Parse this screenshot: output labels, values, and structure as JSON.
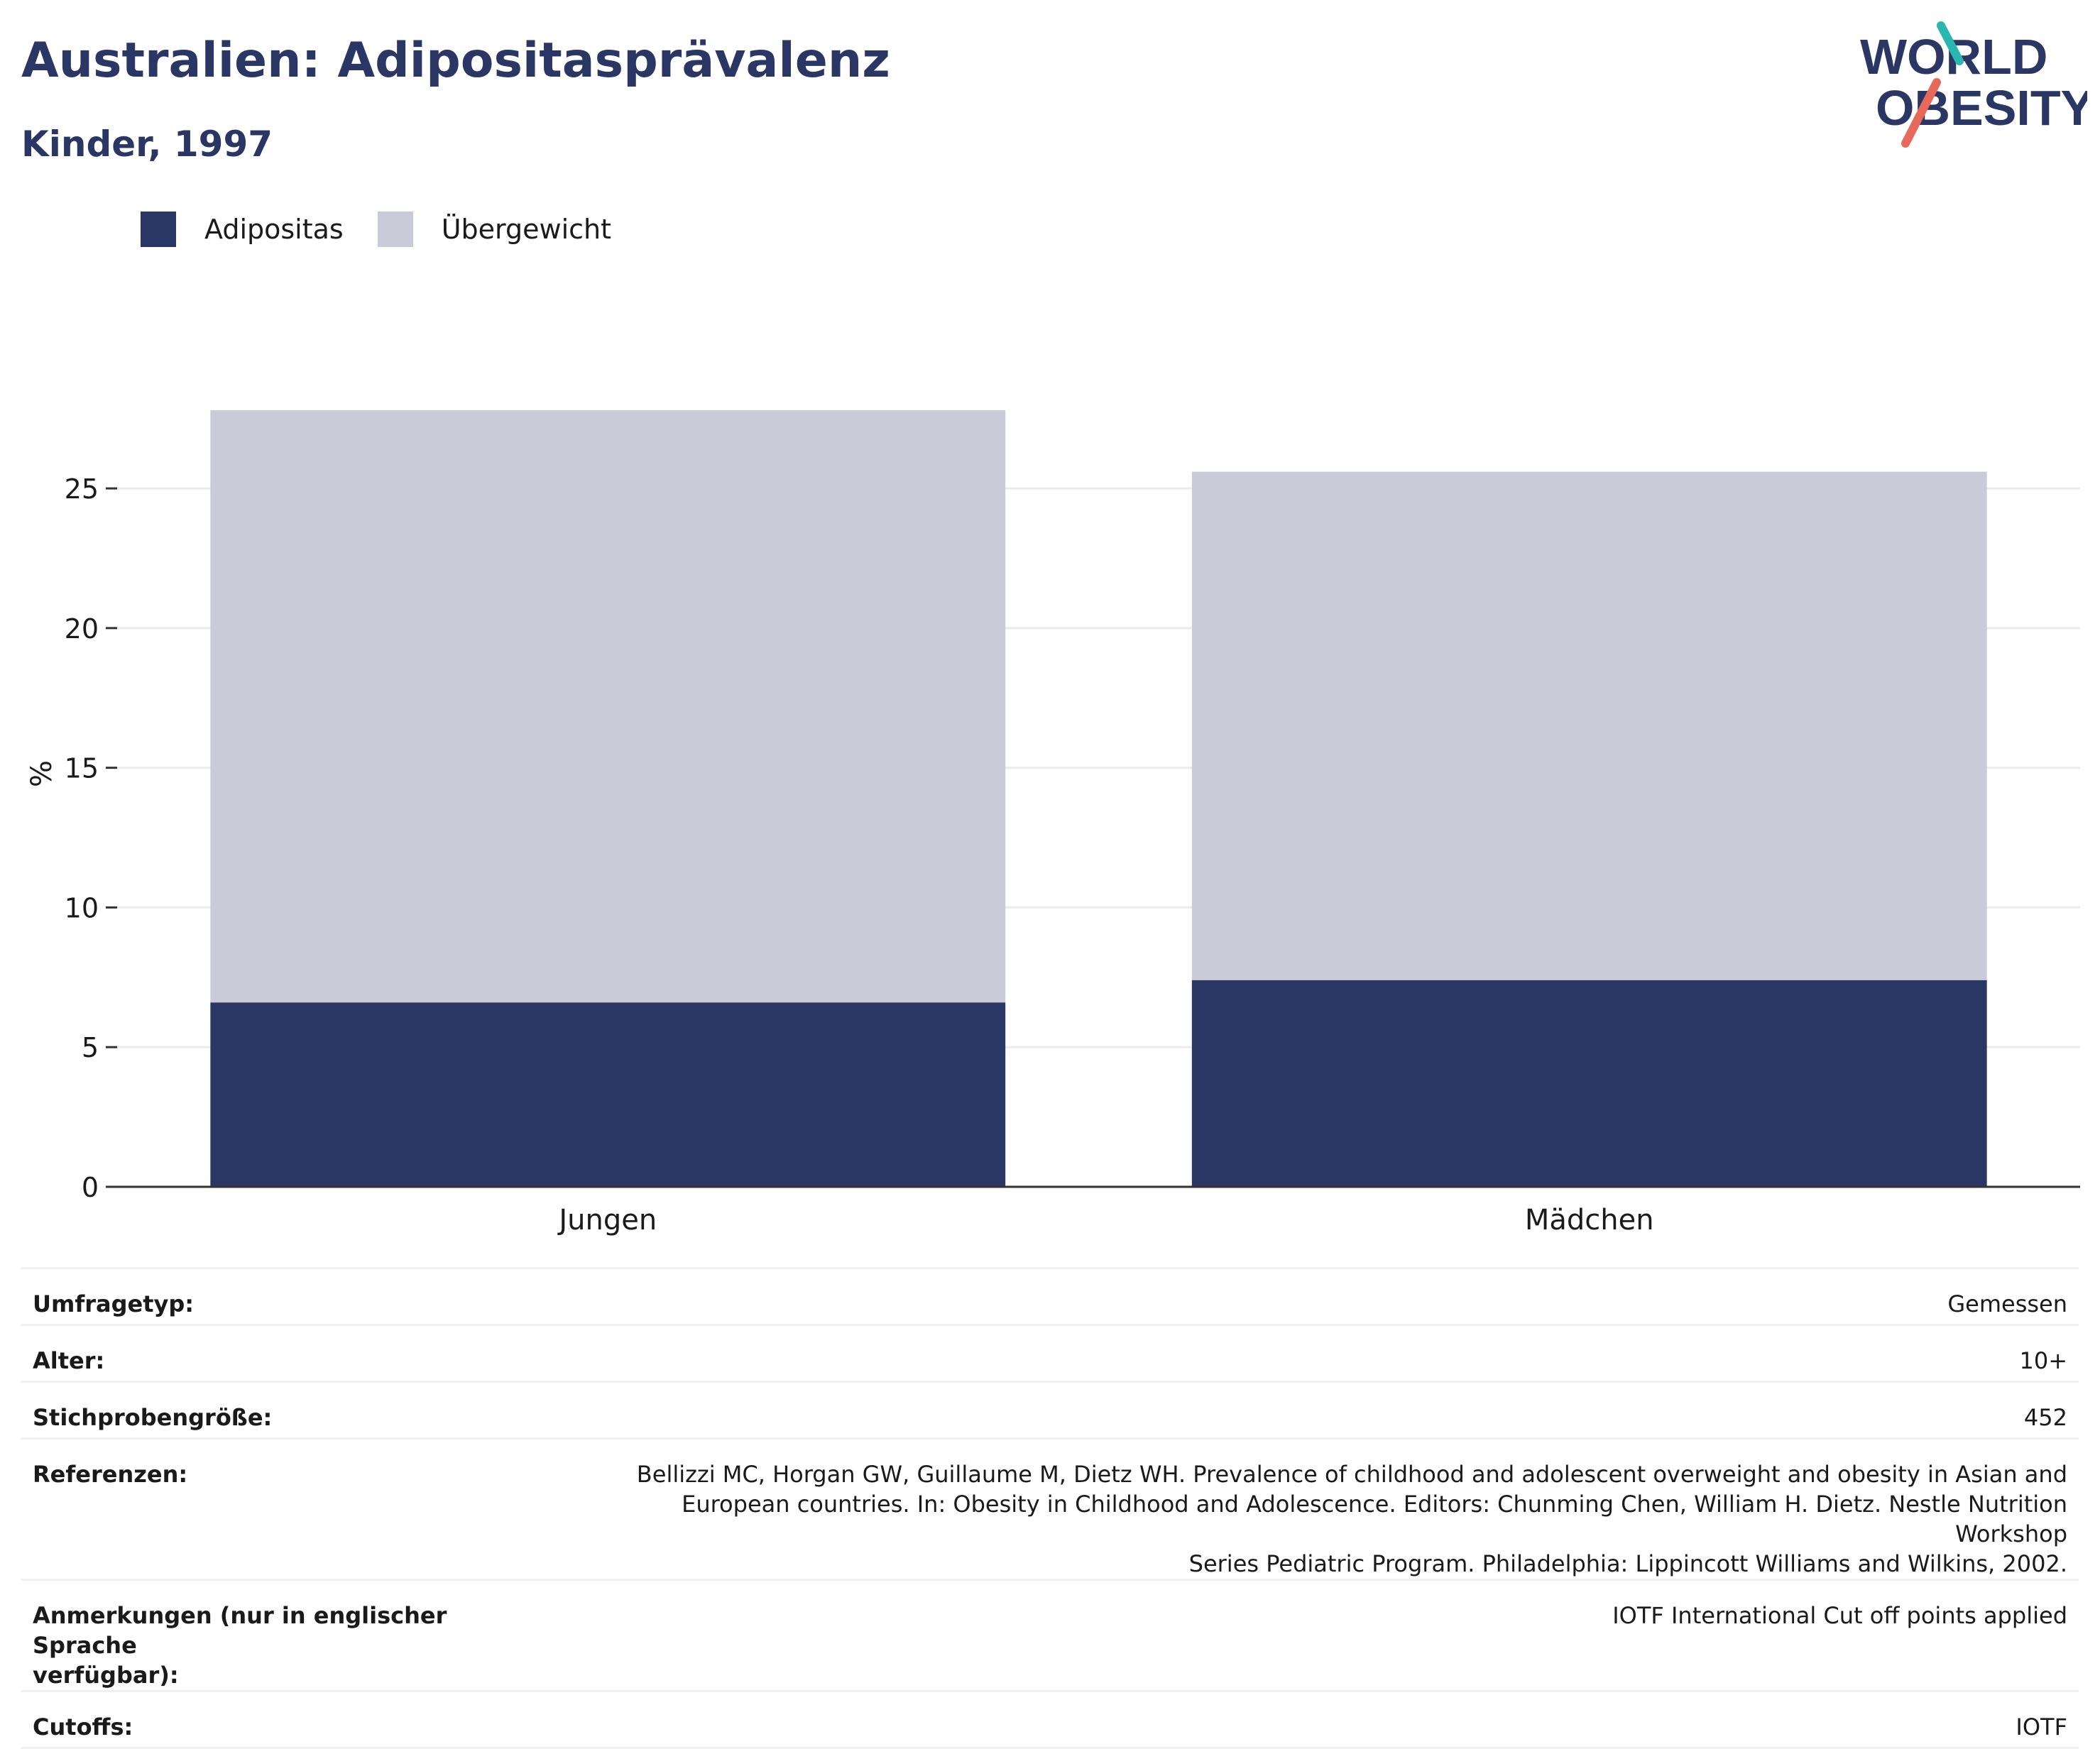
{
  "header": {
    "title": "Australien: Adipositasprävalenz",
    "subtitle": "Kinder, 1997"
  },
  "logo": {
    "line1": "WORLD",
    "line2": "OBESITY",
    "accent_teal": "#2bb6b0",
    "accent_coral": "#e8685a"
  },
  "chart_data": {
    "type": "bar",
    "stacked": true,
    "categories": [
      "Jungen",
      "Mädchen"
    ],
    "series": [
      {
        "name": "Adipositas",
        "values": [
          6.6,
          7.4
        ],
        "color": "#2a3663"
      },
      {
        "name": "Übergewicht",
        "values": [
          21.2,
          18.2
        ],
        "color": "#c9ccd8"
      }
    ],
    "ylabel": "%",
    "ylim": [
      0,
      28
    ],
    "yticks": [
      0,
      5,
      10,
      15,
      20,
      25
    ],
    "grid": true,
    "legend_position": "top-left"
  },
  "meta": [
    {
      "key": "Umfragetyp:",
      "value": "Gemessen"
    },
    {
      "key": "Alter:",
      "value": "10+"
    },
    {
      "key": "Stichprobengröße:",
      "value": "452"
    },
    {
      "key": "Referenzen:",
      "value_lines": [
        "Bellizzi MC, Horgan GW, Guillaume M, Dietz WH. Prevalence of childhood and adolescent overweight and obesity in Asian and",
        "European countries. In: Obesity in Childhood and Adolescence. Editors: Chunming Chen, William H. Dietz. Nestle Nutrition Workshop",
        "Series Pediatric Program. Philadelphia: Lippincott Williams and Wilkins, 2002."
      ]
    },
    {
      "key_lines": [
        "Anmerkungen (nur in englischer Sprache",
        "verfügbar):"
      ],
      "value": "IOTF International Cut off points applied"
    },
    {
      "key": "Cutoffs:",
      "value": "IOTF"
    }
  ]
}
